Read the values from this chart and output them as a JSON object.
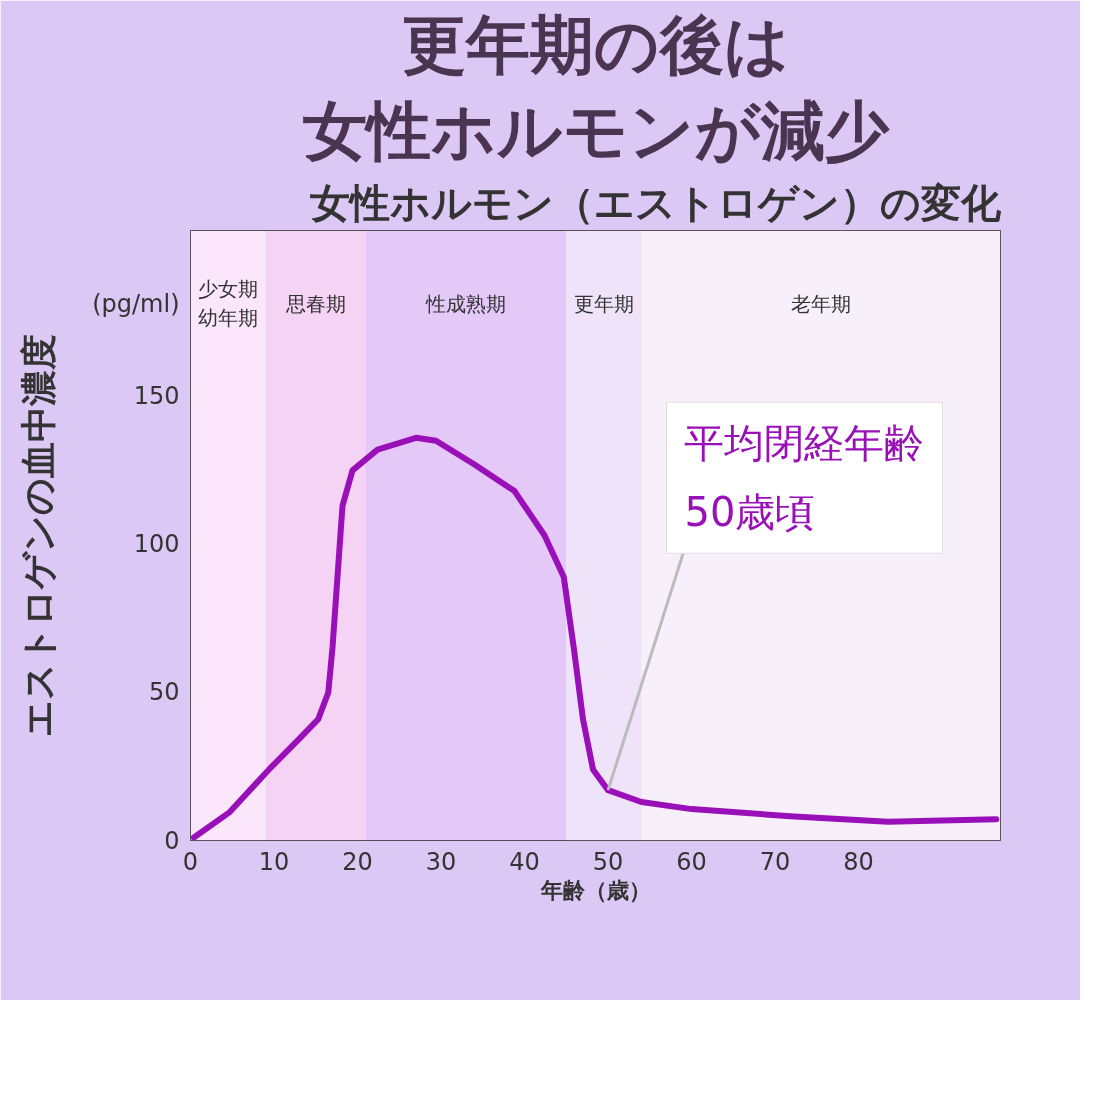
{
  "chart_data": {
    "type": "line",
    "title": "更年期の後は",
    "subtitle": "女性ホルモン（エストロゲン）の変化",
    "xlabel": "年齢（歳）",
    "ylabel": "エストロゲンの血中濃度",
    "annotations": [
      "(pg/ml)",
      "女性ホルモンが減少",
      {
        "text": "平均閉経年齢\n50歳頃",
        "x": 50,
        "y": 17
      }
    ],
    "series": [
      {
        "color": "#9a10b8",
        "x": [
          0.4,
          4.7,
          9.4,
          12.9,
          15.3,
          16.5,
          17,
          17.6,
          18.2,
          19.4,
          22.4,
          27,
          29.4,
          34,
          38.8,
          42.4,
          44.7,
          45.9,
          47,
          48.2,
          50,
          54,
          60,
          71.8,
          83.5,
          96.5
        ],
        "values": [
          1,
          9.6,
          24,
          34,
          41,
          50,
          65,
          89,
          113,
          125,
          132,
          136,
          135,
          127,
          118,
          103,
          89,
          65,
          41,
          24,
          17,
          13,
          10.6,
          8.2,
          6.3,
          7.2
        ]
      }
    ],
    "xlim": [
      0,
      97
    ],
    "ylim": [
      0,
      206
    ],
    "xticks": [
      0,
      10,
      20,
      30,
      40,
      50,
      60,
      70,
      80
    ],
    "yticks": [
      0,
      50,
      100,
      150
    ],
    "bands": [
      {
        "axis": "x",
        "from": 0,
        "to": 9,
        "label": "少女期幼年期",
        "color": "#fbe6fb"
      },
      {
        "axis": "x",
        "from": 9,
        "to": 21,
        "label": "思春期",
        "color": "#f5d3f5"
      },
      {
        "axis": "x",
        "from": 21,
        "to": 45,
        "label": "性成熟期",
        "color": "#e3c8f8"
      },
      {
        "axis": "x",
        "from": 45,
        "to": 54,
        "label": "更年期",
        "color": "#efe3fa"
      },
      {
        "axis": "x",
        "from": 54,
        "to": 97,
        "label": "老年期",
        "color": "#f7f0fb"
      }
    ],
    "grid": false,
    "marker": "none",
    "line_style": "solid"
  }
}
